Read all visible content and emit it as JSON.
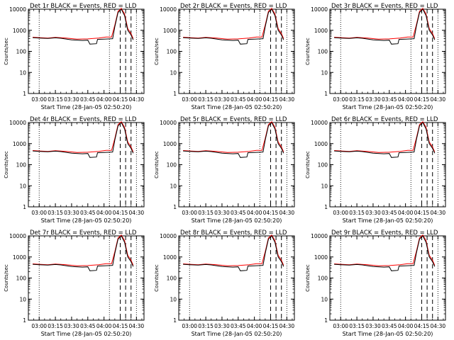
{
  "chart_data": {
    "type": "line",
    "layout": "3x3 grid of panels",
    "shared": {
      "ylabel": "Counts/sec",
      "xlabel": "Start Time (28-Jan-05 02:50:20)",
      "y_scale": "log",
      "ylim": [
        1,
        10000
      ],
      "y_ticks": [
        "1",
        "10",
        "100",
        "1000",
        "10000"
      ],
      "x_ticks": [
        "03:00",
        "03:15",
        "03:30",
        "03:45",
        "04:00",
        "04:15",
        "04:30"
      ],
      "grid": false,
      "series_colors": {
        "events": "#000000",
        "lld": "#ff0000"
      },
      "dotted_verticals": [
        "03:00",
        "04:05",
        "04:30"
      ],
      "dashed_verticals": [
        "04:15",
        "04:20",
        "04:25"
      ],
      "events_series": [
        {
          "t": "02:54",
          "v": 450
        },
        {
          "t": "03:00",
          "v": 430
        },
        {
          "t": "03:08",
          "v": 410
        },
        {
          "t": "03:15",
          "v": 440
        },
        {
          "t": "03:20",
          "v": 420
        },
        {
          "t": "03:30",
          "v": 350
        },
        {
          "t": "03:40",
          "v": 330
        },
        {
          "t": "03:45",
          "v": 340
        },
        {
          "t": "03:47",
          "v": 220
        },
        {
          "t": "03:53",
          "v": 230
        },
        {
          "t": "03:54",
          "v": 370
        },
        {
          "t": "04:00",
          "v": 380
        },
        {
          "t": "04:05",
          "v": 390
        },
        {
          "t": "04:08",
          "v": 400
        },
        {
          "t": "04:10",
          "v": 1500
        },
        {
          "t": "04:13",
          "v": 7000
        },
        {
          "t": "04:16",
          "v": 10000
        },
        {
          "t": "04:19",
          "v": 5000
        },
        {
          "t": "04:22",
          "v": 1000
        },
        {
          "t": "04:25",
          "v": 600
        },
        {
          "t": "04:27",
          "v": 350
        }
      ],
      "lld_series": [
        {
          "t": "02:54",
          "v": 470
        },
        {
          "t": "03:00",
          "v": 450
        },
        {
          "t": "03:08",
          "v": 430
        },
        {
          "t": "03:15",
          "v": 460
        },
        {
          "t": "03:25",
          "v": 430
        },
        {
          "t": "03:35",
          "v": 380
        },
        {
          "t": "03:45",
          "v": 390
        },
        {
          "t": "03:55",
          "v": 430
        },
        {
          "t": "04:02",
          "v": 480
        },
        {
          "t": "04:07",
          "v": 480
        },
        {
          "t": "04:10",
          "v": 1800
        },
        {
          "t": "04:13",
          "v": 8000
        },
        {
          "t": "04:16",
          "v": 11000
        },
        {
          "t": "04:19",
          "v": 6000
        },
        {
          "t": "04:22",
          "v": 1200
        },
        {
          "t": "04:25",
          "v": 700
        },
        {
          "t": "04:27",
          "v": 400
        }
      ]
    },
    "panels": [
      {
        "title": "Det 1r BLACK = Events, RED = LLD"
      },
      {
        "title": "Det 2r BLACK = Events, RED = LLD"
      },
      {
        "title": "Det 3r BLACK = Events, RED = LLD"
      },
      {
        "title": "Det 4r BLACK = Events, RED = LLD"
      },
      {
        "title": "Det 5r BLACK = Events, RED = LLD"
      },
      {
        "title": "Det 6r BLACK = Events, RED = LLD"
      },
      {
        "title": "Det 7r BLACK = Events, RED = LLD"
      },
      {
        "title": "Det 8r BLACK = Events, RED = LLD"
      },
      {
        "title": "Det 9r BLACK = Events, RED = LLD"
      }
    ]
  }
}
